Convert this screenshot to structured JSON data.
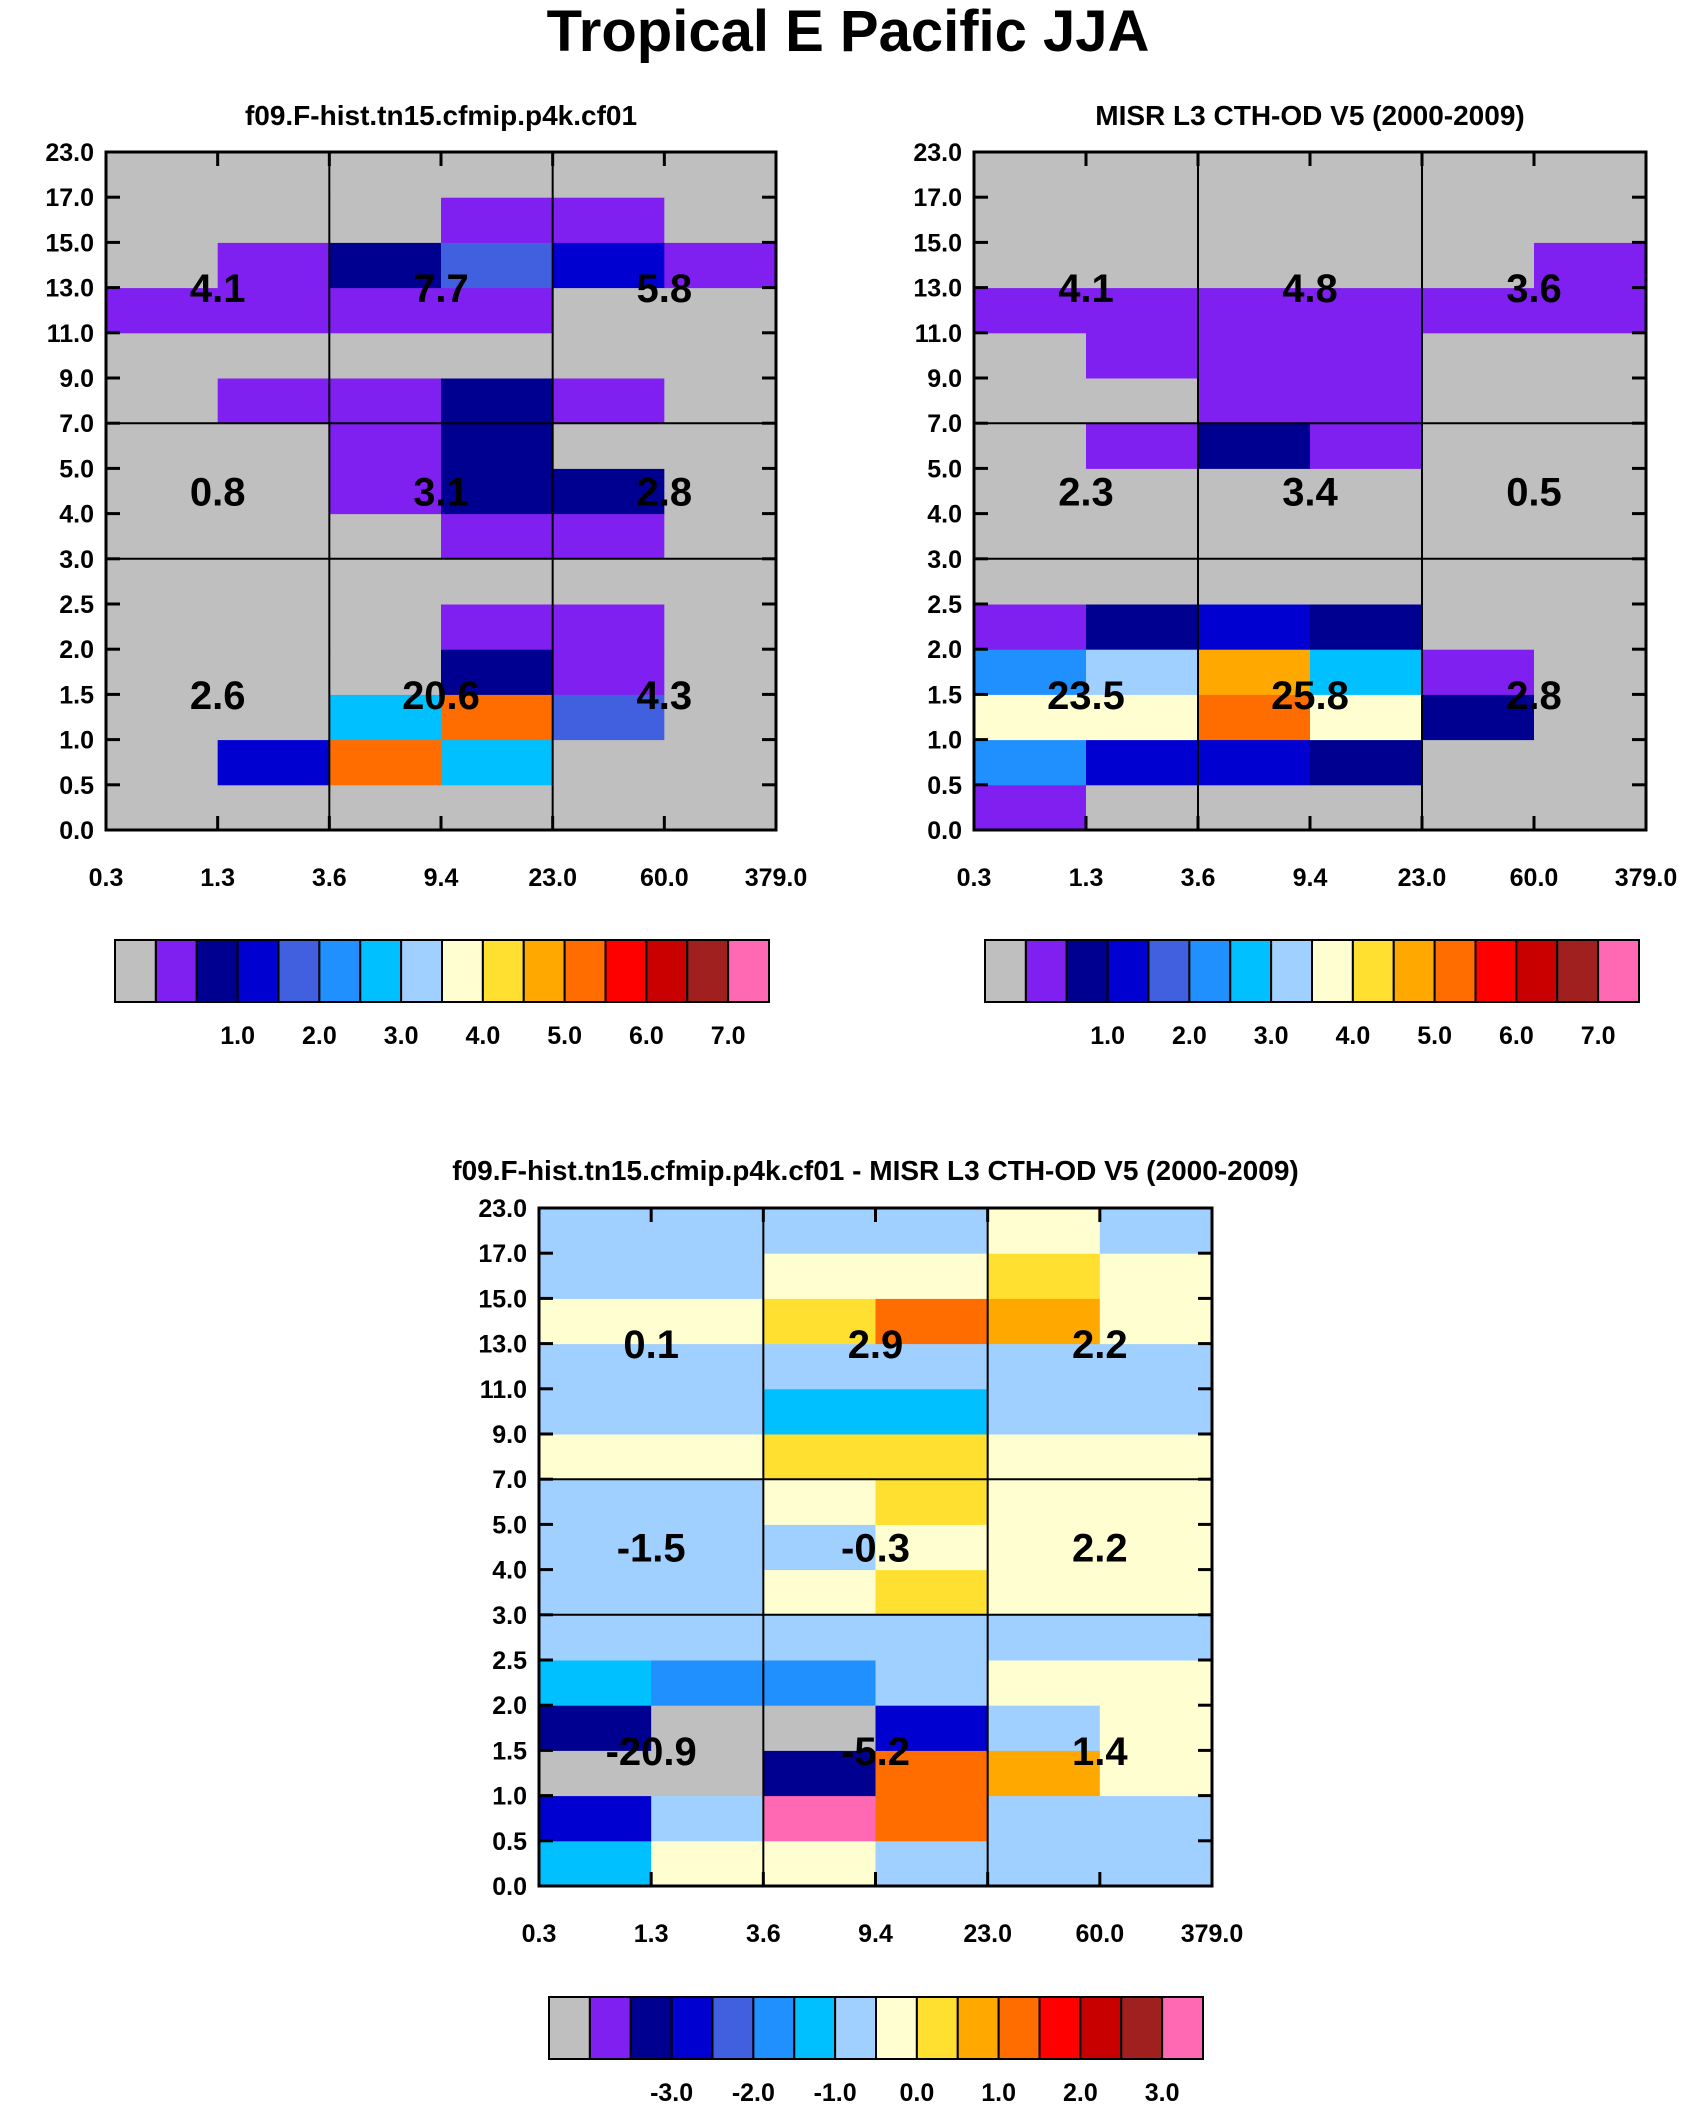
{
  "title": "Tropical E Pacific JJA",
  "chart_data": [
    {
      "type": "heatmap",
      "title": "f09.F-hist.tn15.cfmip.p4k.cf01",
      "x_tick_labels": [
        "0.3",
        "1.3",
        "3.6",
        "9.4",
        "23.0",
        "60.0",
        "379.0"
      ],
      "y_tick_labels": [
        "0.0",
        "0.5",
        "1.0",
        "1.5",
        "2.0",
        "2.5",
        "3.0",
        "4.0",
        "5.0",
        "7.0",
        "9.0",
        "11.0",
        "13.0",
        "15.0",
        "17.0",
        "23.0"
      ],
      "cell_color_index_rows_bottom_to_top": [
        [
          0,
          0,
          0,
          0,
          0,
          0
        ],
        [
          0,
          3,
          11,
          6,
          0,
          0
        ],
        [
          0,
          0,
          6,
          11,
          4,
          0
        ],
        [
          0,
          0,
          0,
          2,
          1,
          0
        ],
        [
          0,
          0,
          0,
          1,
          1,
          0
        ],
        [
          0,
          0,
          0,
          0,
          0,
          0
        ],
        [
          0,
          0,
          0,
          1,
          1,
          0
        ],
        [
          0,
          0,
          1,
          2,
          2,
          0
        ],
        [
          0,
          0,
          1,
          2,
          0,
          0
        ],
        [
          0,
          1,
          1,
          2,
          1,
          0
        ],
        [
          0,
          0,
          0,
          0,
          0,
          0
        ],
        [
          1,
          1,
          1,
          1,
          0,
          0
        ],
        [
          0,
          1,
          2,
          4,
          3,
          1
        ],
        [
          0,
          0,
          0,
          1,
          1,
          0
        ],
        [
          0,
          0,
          0,
          0,
          0,
          0
        ]
      ],
      "region_values": [
        [
          "2.6",
          "20.6",
          "4.3"
        ],
        [
          "0.8",
          "3.1",
          "2.8"
        ],
        [
          "4.1",
          "7.7",
          "5.8"
        ]
      ],
      "colorbar_labels": [
        "1.0",
        "2.0",
        "3.0",
        "4.0",
        "5.0",
        "6.0",
        "7.0"
      ]
    },
    {
      "type": "heatmap",
      "title": "MISR L3 CTH-OD V5 (2000-2009)",
      "x_tick_labels": [
        "0.3",
        "1.3",
        "3.6",
        "9.4",
        "23.0",
        "60.0",
        "379.0"
      ],
      "y_tick_labels": [
        "0.0",
        "0.5",
        "1.0",
        "1.5",
        "2.0",
        "2.5",
        "3.0",
        "4.0",
        "5.0",
        "7.0",
        "9.0",
        "11.0",
        "13.0",
        "15.0",
        "17.0",
        "23.0"
      ],
      "cell_color_index_rows_bottom_to_top": [
        [
          1,
          0,
          0,
          0,
          0,
          0
        ],
        [
          5,
          3,
          3,
          2,
          0,
          0
        ],
        [
          8,
          8,
          11,
          8,
          2,
          0
        ],
        [
          5,
          7,
          10,
          6,
          1,
          0
        ],
        [
          1,
          2,
          3,
          2,
          0,
          0
        ],
        [
          0,
          0,
          0,
          0,
          0,
          0
        ],
        [
          0,
          0,
          0,
          0,
          0,
          0
        ],
        [
          0,
          0,
          0,
          0,
          0,
          0
        ],
        [
          0,
          1,
          2,
          1,
          0,
          0
        ],
        [
          0,
          0,
          1,
          1,
          0,
          0
        ],
        [
          0,
          1,
          1,
          1,
          0,
          0
        ],
        [
          1,
          1,
          1,
          1,
          1,
          1
        ],
        [
          0,
          0,
          0,
          0,
          0,
          1
        ],
        [
          0,
          0,
          0,
          0,
          0,
          0
        ],
        [
          0,
          0,
          0,
          0,
          0,
          0
        ]
      ],
      "region_values": [
        [
          "23.5",
          "25.8",
          "2.8"
        ],
        [
          "2.3",
          "3.4",
          "0.5"
        ],
        [
          "4.1",
          "4.8",
          "3.6"
        ]
      ],
      "colorbar_labels": [
        "1.0",
        "2.0",
        "3.0",
        "4.0",
        "5.0",
        "6.0",
        "7.0"
      ]
    },
    {
      "type": "heatmap",
      "title": "f09.F-hist.tn15.cfmip.p4k.cf01 - MISR L3 CTH-OD V5 (2000-2009)",
      "x_tick_labels": [
        "0.3",
        "1.3",
        "3.6",
        "9.4",
        "23.0",
        "60.0",
        "379.0"
      ],
      "y_tick_labels": [
        "0.0",
        "0.5",
        "1.0",
        "1.5",
        "2.0",
        "2.5",
        "3.0",
        "4.0",
        "5.0",
        "7.0",
        "9.0",
        "11.0",
        "13.0",
        "15.0",
        "17.0",
        "23.0"
      ],
      "cell_color_index_rows_bottom_to_top": [
        [
          6,
          8,
          8,
          7,
          7,
          7
        ],
        [
          3,
          7,
          15,
          11,
          7,
          7
        ],
        [
          0,
          0,
          2,
          11,
          10,
          8
        ],
        [
          2,
          0,
          0,
          3,
          7,
          8
        ],
        [
          6,
          5,
          5,
          7,
          8,
          8
        ],
        [
          7,
          7,
          7,
          7,
          7,
          7
        ],
        [
          7,
          7,
          8,
          9,
          8,
          8
        ],
        [
          7,
          7,
          7,
          8,
          8,
          8
        ],
        [
          7,
          7,
          8,
          9,
          8,
          8
        ],
        [
          8,
          8,
          9,
          9,
          8,
          8
        ],
        [
          7,
          7,
          6,
          6,
          7,
          7
        ],
        [
          7,
          7,
          7,
          7,
          7,
          7
        ],
        [
          8,
          8,
          9,
          11,
          10,
          8
        ],
        [
          7,
          7,
          8,
          8,
          9,
          8
        ],
        [
          7,
          7,
          7,
          7,
          8,
          7
        ]
      ],
      "region_values": [
        [
          "-20.9",
          "-5.2",
          "1.4"
        ],
        [
          "-1.5",
          "-0.3",
          "2.2"
        ],
        [
          "0.1",
          "2.9",
          "2.2"
        ]
      ],
      "colorbar_labels": [
        "-3.0",
        "-2.0",
        "-1.0",
        "0.0",
        "1.0",
        "2.0",
        "3.0"
      ]
    }
  ],
  "palette": [
    "#bfbfbf",
    "#8020f0",
    "#000090",
    "#0000d0",
    "#4060e0",
    "#2090ff",
    "#00c0ff",
    "#a0d0ff",
    "#fffed0",
    "#ffe030",
    "#ffa800",
    "#ff6c00",
    "#ff0000",
    "#c80000",
    "#a02020",
    "#ff69b4"
  ]
}
